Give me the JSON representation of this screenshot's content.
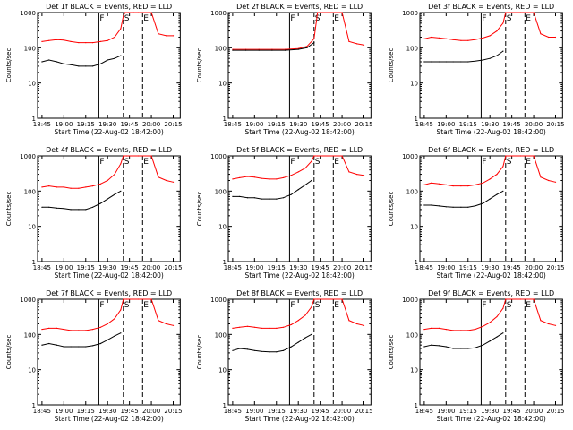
{
  "chart_data": [
    {
      "type": "line",
      "title": "Det 1f BLACK = Events, RED = LLD",
      "xlabel": "Start Time (22-Aug-02 18:42:00)",
      "ylabel": "Counts/sec",
      "x_ticks": [
        "18:45",
        "19:00",
        "19:15",
        "19:30",
        "19:45",
        "20:00",
        "20:15"
      ],
      "y_ticks": [
        "1",
        "10",
        "100",
        "1000"
      ],
      "yscale": "log",
      "ylim": [
        1,
        1000
      ],
      "series": [
        {
          "color": "#ff0000",
          "x": [
            18.75,
            18.83,
            18.92,
            19.0,
            19.08,
            19.17,
            19.25,
            19.33,
            19.42,
            19.5,
            19.58,
            19.65,
            19.68,
            19.7,
            19.74,
            19.8,
            19.85,
            20.0,
            20.08,
            20.17,
            20.25
          ],
          "y": [
            150,
            160,
            170,
            165,
            150,
            140,
            140,
            140,
            150,
            160,
            200,
            350,
            800,
            1000,
            1000,
            1000,
            1000,
            1000,
            250,
            220,
            220
          ]
        },
        {
          "color": "#000000",
          "x": [
            18.75,
            18.83,
            18.92,
            19.0,
            19.08,
            19.17,
            19.25,
            19.33,
            19.42,
            19.5,
            19.58,
            19.65
          ],
          "y": [
            40,
            45,
            40,
            35,
            33,
            30,
            30,
            30,
            35,
            45,
            50,
            60
          ]
        }
      ],
      "markers": [
        {
          "x": 19.4,
          "label": "F"
        },
        {
          "x": 19.68,
          "label": "S"
        },
        {
          "x": 19.9,
          "label": "E"
        }
      ]
    },
    {
      "type": "line",
      "title": "Det 2f BLACK = Events, RED = LLD",
      "xlabel": "Start Time (22-Aug-02 18:42:00)",
      "ylabel": "Counts/sec",
      "x_ticks": [
        "18:45",
        "19:00",
        "19:15",
        "19:30",
        "19:45",
        "20:00",
        "20:15"
      ],
      "y_ticks": [
        "1",
        "10",
        "100",
        "1000"
      ],
      "yscale": "log",
      "ylim": [
        1,
        1000
      ],
      "series": [
        {
          "color": "#ff0000",
          "x": [
            18.75,
            18.9,
            19.05,
            19.2,
            19.35,
            19.5,
            19.6,
            19.68,
            19.72,
            19.85,
            20.0,
            20.08,
            20.17,
            20.25
          ],
          "y": [
            90,
            90,
            90,
            90,
            90,
            95,
            110,
            180,
            1000,
            1000,
            1000,
            150,
            130,
            120
          ]
        },
        {
          "color": "#000000",
          "x": [
            18.75,
            18.9,
            19.05,
            19.2,
            19.35,
            19.5,
            19.6,
            19.68
          ],
          "y": [
            85,
            85,
            85,
            85,
            85,
            90,
            100,
            140
          ]
        }
      ],
      "markers": [
        {
          "x": 19.4,
          "label": "F"
        },
        {
          "x": 19.68,
          "label": "S"
        },
        {
          "x": 19.9,
          "label": "E"
        }
      ]
    },
    {
      "type": "line",
      "title": "Det 3f BLACK = Events, RED = LLD",
      "xlabel": "Start Time (22-Aug-02 18:42:00)",
      "ylabel": "Counts/sec",
      "x_ticks": [
        "18:45",
        "19:00",
        "19:15",
        "19:30",
        "19:45",
        "20:00",
        "20:15"
      ],
      "y_ticks": [
        "1",
        "10",
        "100",
        "1000"
      ],
      "yscale": "log",
      "ylim": [
        1,
        1000
      ],
      "series": [
        {
          "color": "#ff0000",
          "x": [
            18.75,
            18.83,
            18.92,
            19.0,
            19.08,
            19.17,
            19.25,
            19.33,
            19.42,
            19.5,
            19.58,
            19.65,
            19.68,
            19.72,
            19.85,
            20.0,
            20.08,
            20.17,
            20.25
          ],
          "y": [
            180,
            200,
            190,
            180,
            170,
            160,
            160,
            170,
            190,
            220,
            300,
            500,
            1000,
            1000,
            1000,
            1000,
            250,
            200,
            200
          ]
        },
        {
          "color": "#000000",
          "x": [
            18.75,
            18.83,
            18.92,
            19.0,
            19.08,
            19.17,
            19.25,
            19.33,
            19.42,
            19.5,
            19.58,
            19.65
          ],
          "y": [
            40,
            40,
            40,
            40,
            40,
            40,
            40,
            42,
            45,
            50,
            60,
            80
          ]
        }
      ],
      "markers": [
        {
          "x": 19.4,
          "label": "F"
        },
        {
          "x": 19.68,
          "label": "S"
        },
        {
          "x": 19.9,
          "label": "E"
        }
      ]
    },
    {
      "type": "line",
      "title": "Det 4f BLACK = Events, RED = LLD",
      "xlabel": "Start Time (22-Aug-02 18:42:00)",
      "ylabel": "Counts/sec",
      "x_ticks": [
        "18:45",
        "19:00",
        "19:15",
        "19:30",
        "19:45",
        "20:00",
        "20:15"
      ],
      "y_ticks": [
        "1",
        "10",
        "100",
        "1000"
      ],
      "yscale": "log",
      "ylim": [
        1,
        1000
      ],
      "series": [
        {
          "color": "#ff0000",
          "x": [
            18.75,
            18.83,
            18.92,
            19.0,
            19.08,
            19.17,
            19.25,
            19.33,
            19.42,
            19.5,
            19.58,
            19.65,
            19.68,
            19.72,
            19.85,
            20.0,
            20.08,
            20.17,
            20.25
          ],
          "y": [
            130,
            140,
            130,
            130,
            120,
            120,
            130,
            140,
            160,
            200,
            300,
            600,
            1000,
            1000,
            1000,
            1000,
            250,
            200,
            180
          ]
        },
        {
          "color": "#000000",
          "x": [
            18.75,
            18.83,
            18.92,
            19.0,
            19.08,
            19.17,
            19.25,
            19.33,
            19.42,
            19.5,
            19.58,
            19.65
          ],
          "y": [
            35,
            35,
            33,
            32,
            30,
            30,
            30,
            35,
            45,
            60,
            80,
            100
          ]
        }
      ],
      "markers": [
        {
          "x": 19.4,
          "label": "F"
        },
        {
          "x": 19.68,
          "label": "S"
        },
        {
          "x": 19.9,
          "label": "E"
        }
      ]
    },
    {
      "type": "line",
      "title": "Det 5f BLACK = Events, RED = LLD",
      "xlabel": "Start Time (22-Aug-02 18:42:00)",
      "ylabel": "Counts/sec",
      "x_ticks": [
        "18:45",
        "19:00",
        "19:15",
        "19:30",
        "19:45",
        "20:00",
        "20:15"
      ],
      "y_ticks": [
        "1",
        "10",
        "100",
        "1000"
      ],
      "yscale": "log",
      "ylim": [
        1,
        1000
      ],
      "series": [
        {
          "color": "#ff0000",
          "x": [
            18.75,
            18.83,
            18.92,
            19.0,
            19.08,
            19.17,
            19.25,
            19.33,
            19.42,
            19.5,
            19.58,
            19.65,
            19.68,
            19.72,
            19.85,
            20.0,
            20.08,
            20.17,
            20.25
          ],
          "y": [
            220,
            240,
            260,
            250,
            230,
            220,
            220,
            240,
            280,
            350,
            450,
            700,
            1000,
            1000,
            1000,
            1000,
            350,
            300,
            280
          ]
        },
        {
          "color": "#000000",
          "x": [
            18.75,
            18.83,
            18.92,
            19.0,
            19.08,
            19.17,
            19.25,
            19.33,
            19.42,
            19.5,
            19.58,
            19.65
          ],
          "y": [
            70,
            70,
            65,
            65,
            60,
            60,
            60,
            65,
            80,
            110,
            150,
            200
          ]
        }
      ],
      "markers": [
        {
          "x": 19.4,
          "label": "F"
        },
        {
          "x": 19.68,
          "label": "S"
        },
        {
          "x": 19.9,
          "label": "E"
        }
      ]
    },
    {
      "type": "line",
      "title": "Det 6f BLACK = Events, RED = LLD",
      "xlabel": "Start Time (22-Aug-02 18:42:00)",
      "ylabel": "Counts/sec",
      "x_ticks": [
        "18:45",
        "19:00",
        "19:15",
        "19:30",
        "19:45",
        "20:00",
        "20:15"
      ],
      "y_ticks": [
        "1",
        "10",
        "100",
        "1000"
      ],
      "yscale": "log",
      "ylim": [
        1,
        1000
      ],
      "series": [
        {
          "color": "#ff0000",
          "x": [
            18.75,
            18.83,
            18.92,
            19.0,
            19.08,
            19.17,
            19.25,
            19.33,
            19.42,
            19.5,
            19.58,
            19.65,
            19.68,
            19.72,
            19.85,
            20.0,
            20.08,
            20.17,
            20.25
          ],
          "y": [
            150,
            170,
            160,
            150,
            140,
            140,
            140,
            150,
            170,
            220,
            300,
            500,
            1000,
            1000,
            1000,
            1000,
            250,
            200,
            180
          ]
        },
        {
          "color": "#000000",
          "x": [
            18.75,
            18.83,
            18.92,
            19.0,
            19.08,
            19.17,
            19.25,
            19.33,
            19.42,
            19.5,
            19.58,
            19.65
          ],
          "y": [
            40,
            40,
            38,
            36,
            35,
            35,
            35,
            38,
            45,
            60,
            80,
            100
          ]
        }
      ],
      "markers": [
        {
          "x": 19.4,
          "label": "F"
        },
        {
          "x": 19.68,
          "label": "S"
        },
        {
          "x": 19.9,
          "label": "E"
        }
      ]
    },
    {
      "type": "line",
      "title": "Det 7f BLACK = Events, RED = LLD",
      "xlabel": "Start Time (22-Aug-02 18:42:00)",
      "ylabel": "Counts/sec",
      "x_ticks": [
        "18:45",
        "19:00",
        "19:15",
        "19:30",
        "19:45",
        "20:00",
        "20:15"
      ],
      "y_ticks": [
        "1",
        "10",
        "100",
        "1000"
      ],
      "yscale": "log",
      "ylim": [
        1,
        1000
      ],
      "series": [
        {
          "color": "#ff0000",
          "x": [
            18.75,
            18.83,
            18.92,
            19.0,
            19.08,
            19.17,
            19.25,
            19.33,
            19.42,
            19.5,
            19.58,
            19.65,
            19.68,
            19.72,
            19.85,
            20.0,
            20.08,
            20.17,
            20.25
          ],
          "y": [
            140,
            150,
            150,
            140,
            130,
            130,
            130,
            140,
            160,
            200,
            280,
            500,
            1000,
            1000,
            1000,
            1000,
            250,
            200,
            180
          ]
        },
        {
          "color": "#000000",
          "x": [
            18.75,
            18.83,
            18.92,
            19.0,
            19.08,
            19.17,
            19.25,
            19.33,
            19.42,
            19.5,
            19.58,
            19.65
          ],
          "y": [
            50,
            55,
            50,
            45,
            45,
            45,
            45,
            48,
            55,
            70,
            90,
            110
          ]
        }
      ],
      "markers": [
        {
          "x": 19.4,
          "label": "F"
        },
        {
          "x": 19.68,
          "label": "S"
        },
        {
          "x": 19.9,
          "label": "E"
        }
      ]
    },
    {
      "type": "line",
      "title": "Det 8f BLACK = Events, RED = LLD",
      "xlabel": "Start Time (22-Aug-02 18:42:00)",
      "ylabel": "Counts/sec",
      "x_ticks": [
        "18:45",
        "19:00",
        "19:15",
        "19:30",
        "19:45",
        "20:00",
        "20:15"
      ],
      "y_ticks": [
        "1",
        "10",
        "100",
        "1000"
      ],
      "yscale": "log",
      "ylim": [
        1,
        1000
      ],
      "series": [
        {
          "color": "#ff0000",
          "x": [
            18.75,
            18.83,
            18.92,
            19.0,
            19.08,
            19.17,
            19.25,
            19.33,
            19.42,
            19.5,
            19.58,
            19.65,
            19.68,
            19.72,
            19.85,
            20.0,
            20.08,
            20.17,
            20.25
          ],
          "y": [
            150,
            160,
            170,
            160,
            150,
            150,
            150,
            160,
            190,
            250,
            350,
            600,
            1000,
            1000,
            1000,
            1000,
            250,
            200,
            180
          ]
        },
        {
          "color": "#000000",
          "x": [
            18.75,
            18.83,
            18.92,
            19.0,
            19.08,
            19.17,
            19.25,
            19.33,
            19.42,
            19.5,
            19.58,
            19.65
          ],
          "y": [
            35,
            40,
            38,
            35,
            33,
            32,
            32,
            35,
            45,
            60,
            80,
            100
          ]
        }
      ],
      "markers": [
        {
          "x": 19.4,
          "label": "F"
        },
        {
          "x": 19.68,
          "label": "S"
        },
        {
          "x": 19.9,
          "label": "E"
        }
      ]
    },
    {
      "type": "line",
      "title": "Det 9f BLACK = Events, RED = LLD",
      "xlabel": "Start Time (22-Aug-02 18:42:00)",
      "ylabel": "Counts/sec",
      "x_ticks": [
        "18:45",
        "19:00",
        "19:15",
        "19:30",
        "19:45",
        "20:00",
        "20:15"
      ],
      "y_ticks": [
        "1",
        "10",
        "100",
        "1000"
      ],
      "yscale": "log",
      "ylim": [
        1,
        1000
      ],
      "series": [
        {
          "color": "#ff0000",
          "x": [
            18.75,
            18.83,
            18.92,
            19.0,
            19.08,
            19.17,
            19.25,
            19.33,
            19.42,
            19.5,
            19.58,
            19.65,
            19.68,
            19.72,
            19.85,
            20.0,
            20.08,
            20.17,
            20.25
          ],
          "y": [
            140,
            150,
            150,
            140,
            130,
            130,
            130,
            140,
            170,
            220,
            320,
            550,
            1000,
            1000,
            1000,
            1000,
            250,
            200,
            180
          ]
        },
        {
          "color": "#000000",
          "x": [
            18.75,
            18.83,
            18.92,
            19.0,
            19.08,
            19.17,
            19.25,
            19.33,
            19.42,
            19.5,
            19.58,
            19.65
          ],
          "y": [
            45,
            50,
            48,
            45,
            40,
            40,
            40,
            42,
            50,
            65,
            85,
            110
          ]
        }
      ],
      "markers": [
        {
          "x": 19.4,
          "label": "F"
        },
        {
          "x": 19.68,
          "label": "S"
        },
        {
          "x": 19.9,
          "label": "E"
        }
      ]
    }
  ]
}
